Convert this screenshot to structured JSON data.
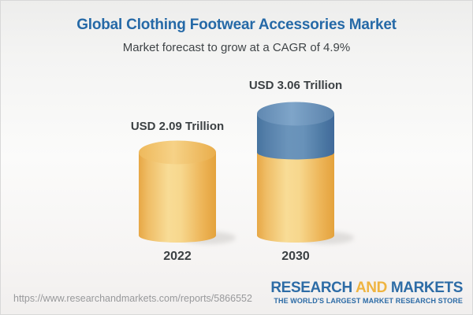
{
  "header": {
    "title": "Global Clothing Footwear Accessories Market",
    "subtitle": "Market forecast to grow at a CAGR of 4.9%"
  },
  "chart_data": {
    "type": "bar",
    "variant": "3d-cylinder",
    "title": "Global Clothing Footwear Accessories Market",
    "subtitle": "Market forecast to grow at a CAGR of 4.9%",
    "unit": "USD Trillion",
    "cagr": "4.9%",
    "categories": [
      "2022",
      "2030"
    ],
    "values": [
      2.09,
      3.06
    ],
    "bars": [
      {
        "category": "2022",
        "label": "USD 2.09 Trillion",
        "value": 2.09,
        "segments": [
          {
            "value": 2.09,
            "color": "yellow"
          }
        ]
      },
      {
        "category": "2030",
        "label": "USD 3.06 Trillion",
        "value": 3.06,
        "segments": [
          {
            "value": 2.09,
            "color": "yellow"
          },
          {
            "value": 0.97,
            "color": "blue"
          }
        ]
      }
    ],
    "colors": {
      "yellow": "#f3c96e",
      "blue": "#5c89b3",
      "title_blue": "#2569a7"
    },
    "legend": "none",
    "grid": "off"
  },
  "footer": {
    "url": "https://www.researchandmarkets.com/reports/5866552",
    "logo": {
      "part1": "RESEARCH",
      "part2": "AND",
      "part3": "MARKETS",
      "tagline": "THE WORLD'S LARGEST MARKET RESEARCH STORE"
    }
  }
}
